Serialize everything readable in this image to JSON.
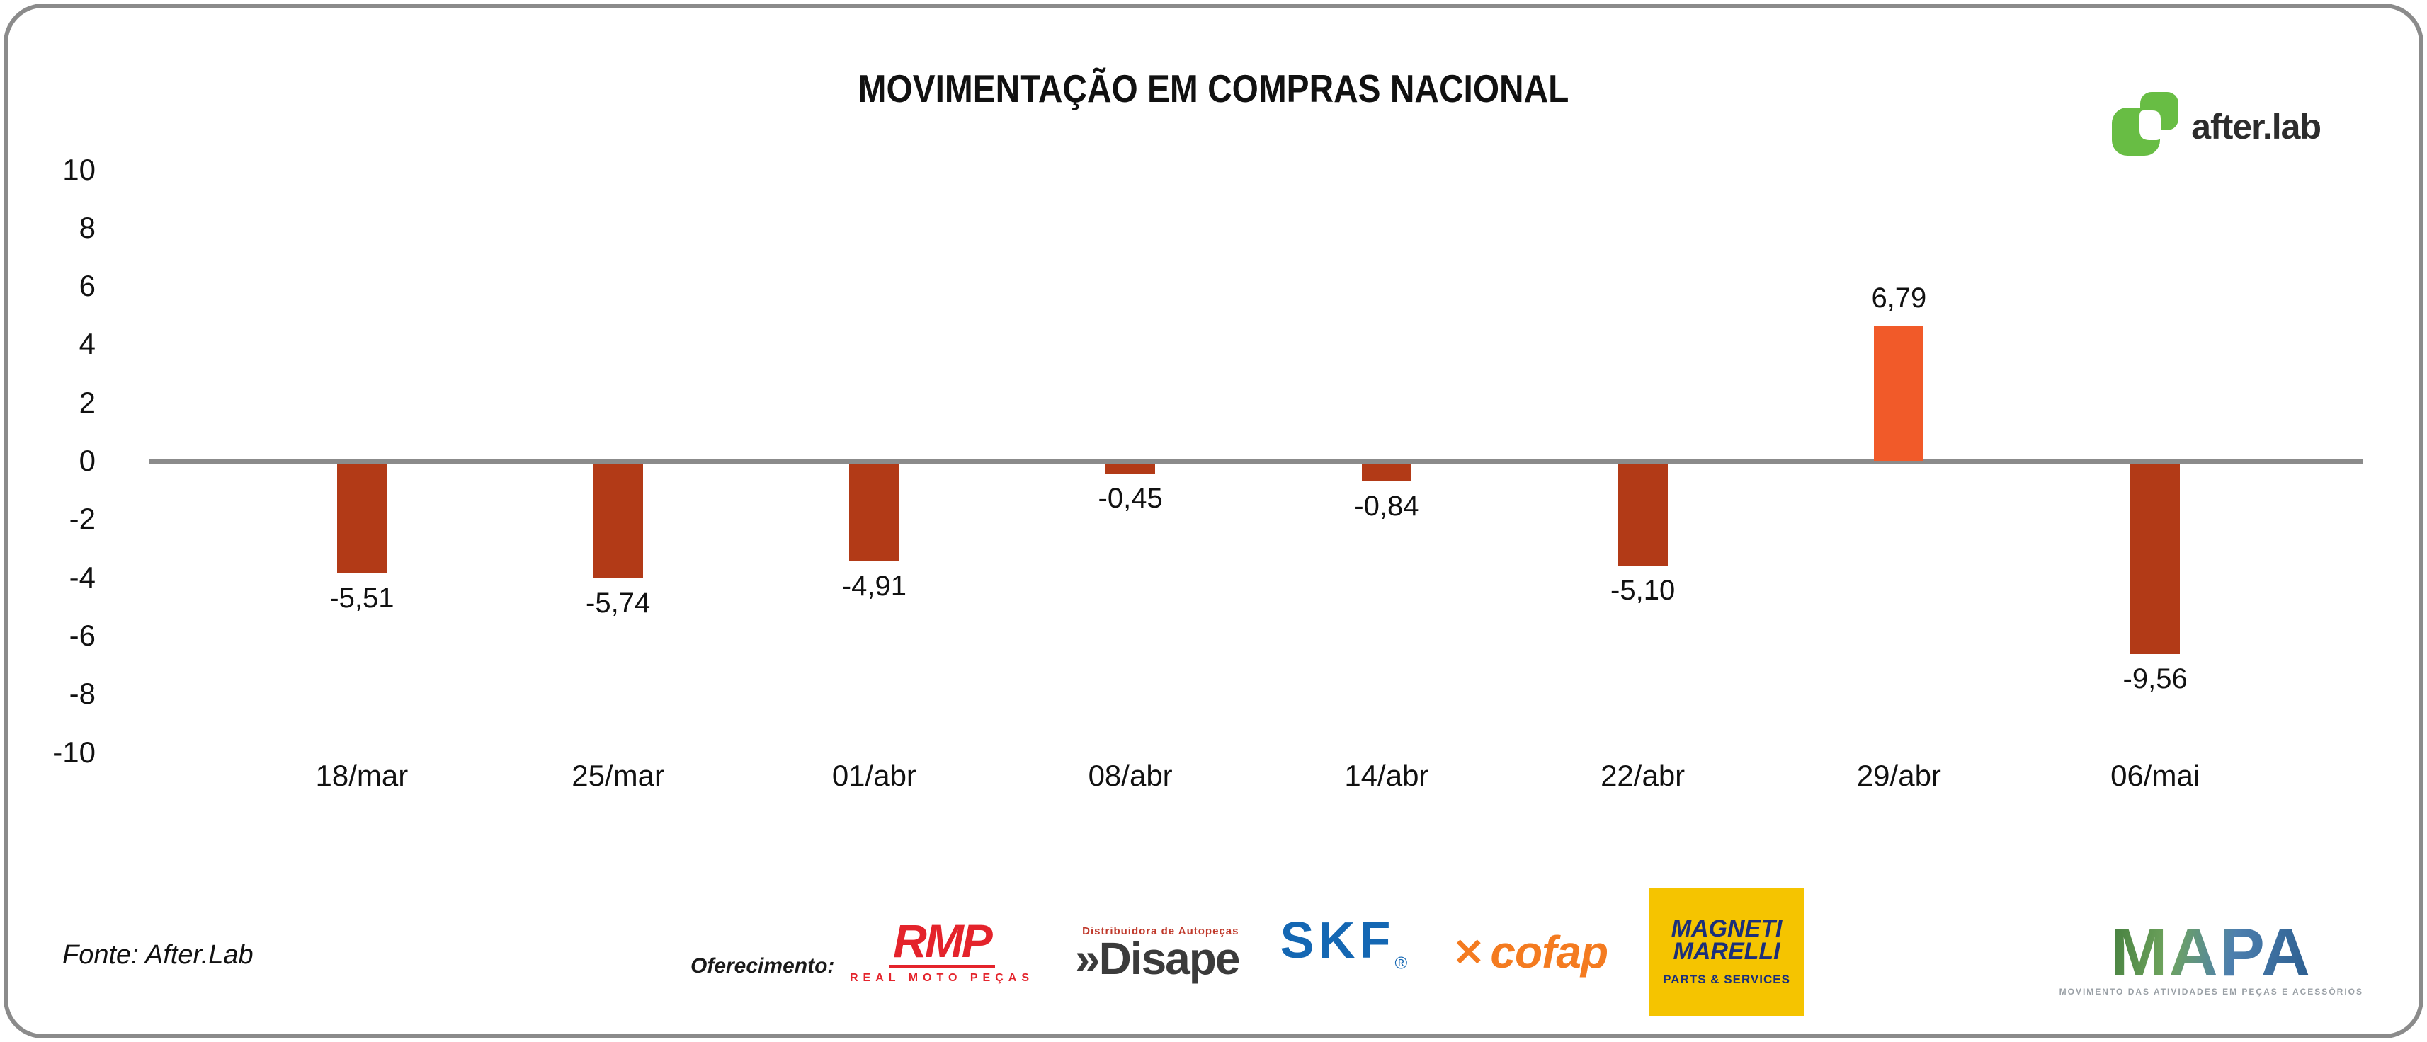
{
  "title": "MOVIMENTAÇÃO EM COMPRAS NACIONAL",
  "brand": {
    "name": "after.lab",
    "logo_green": "#68bd44",
    "text_color": "#2d2d2d"
  },
  "chart_data": {
    "type": "bar",
    "title": "MOVIMENTAÇÃO EM COMPRAS NACIONAL",
    "categories": [
      "18/mar",
      "25/mar",
      "01/abr",
      "08/abr",
      "14/abr",
      "22/abr",
      "29/abr",
      "06/mai"
    ],
    "values": [
      -5.51,
      -5.74,
      -4.91,
      -0.45,
      -0.84,
      -5.1,
      6.79,
      -9.56
    ],
    "value_labels": [
      "-5,51",
      "-5,74",
      "-4,91",
      "-0,45",
      "-0,84",
      "-5,10",
      "6,79",
      "-9,56"
    ],
    "y_ticks": [
      10,
      8,
      6,
      4,
      2,
      0,
      -2,
      -4,
      -6,
      -8,
      -10
    ],
    "ylim": [
      -10,
      10
    ],
    "xlabel": "",
    "ylabel": "",
    "grid": false,
    "legend": "none",
    "bar_color_negative": "#b23a17",
    "bar_color_positive": "#f15a29",
    "baseline_color": "#8b8b8b"
  },
  "footer": {
    "source": "Fonte: After.Lab",
    "offering_label": "Oferecimento:",
    "sponsors": {
      "rmp": {
        "name": "RMP",
        "subtitle": "REAL MOTO PEÇAS",
        "color": "#e4232b"
      },
      "disape": {
        "name": "»Disape",
        "subtitle": "Distribuidora de Autopeças",
        "color": "#3b3b3b"
      },
      "skf": {
        "name": "SKF",
        "reg": "®",
        "color": "#1467b3"
      },
      "cofap": {
        "mark": "✕",
        "name": "cofap",
        "color": "#f47b20"
      },
      "magneti_marelli": {
        "line1": "MAGNETI",
        "line2": "MARELLI",
        "subtitle": "PARTS & SERVICES",
        "bg": "#f5c400",
        "text": "#1b2f7a"
      },
      "mapa": {
        "name": "MAPA",
        "subtitle": "MOVIMENTO DAS ATIVIDADES EM PEÇAS E ACESSÓRIOS"
      }
    }
  }
}
